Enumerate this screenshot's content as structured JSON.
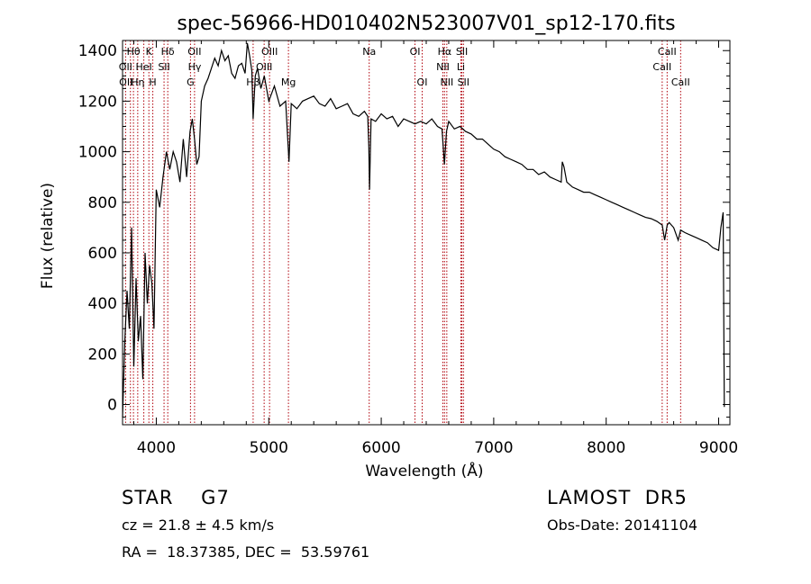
{
  "chart_data": {
    "type": "line",
    "title": "spec-56966-HD010402N523007V01_sp12-170.fits",
    "xlabel": "Wavelength (Å)",
    "ylabel": "Flux (relative)",
    "xlim": [
      3700,
      9100
    ],
    "ylim": [
      -80,
      1440
    ],
    "xticks": [
      4000,
      5000,
      6000,
      7000,
      8000,
      9000
    ],
    "yticks": [
      0,
      200,
      400,
      600,
      800,
      1000,
      1200,
      1400
    ],
    "grid": false,
    "series": [
      {
        "x": [
          3700,
          3720,
          3740,
          3760,
          3780,
          3800,
          3820,
          3840,
          3860,
          3880,
          3900,
          3920,
          3940,
          3960,
          3980,
          4000,
          4030,
          4060,
          4090,
          4120,
          4150,
          4180,
          4210,
          4240,
          4270,
          4300,
          4320,
          4340,
          4360,
          4380,
          4400,
          4430,
          4460,
          4490,
          4520,
          4550,
          4580,
          4610,
          4640,
          4670,
          4700,
          4730,
          4760,
          4790,
          4810,
          4830,
          4850,
          4861,
          4880,
          4900,
          4930,
          4960,
          5000,
          5050,
          5100,
          5150,
          5180,
          5200,
          5250,
          5300,
          5350,
          5400,
          5450,
          5500,
          5550,
          5600,
          5650,
          5700,
          5750,
          5800,
          5850,
          5880,
          5890,
          5896,
          5910,
          5950,
          6000,
          6050,
          6100,
          6150,
          6200,
          6250,
          6300,
          6350,
          6400,
          6450,
          6500,
          6540,
          6562,
          6580,
          6600,
          6650,
          6700,
          6750,
          6800,
          6850,
          6900,
          6950,
          7000,
          7050,
          7100,
          7150,
          7200,
          7250,
          7300,
          7350,
          7400,
          7450,
          7500,
          7550,
          7600,
          7610,
          7625,
          7650,
          7700,
          7750,
          7800,
          7850,
          7900,
          7950,
          8000,
          8050,
          8100,
          8150,
          8200,
          8250,
          8300,
          8350,
          8400,
          8450,
          8498,
          8520,
          8542,
          8560,
          8600,
          8640,
          8662,
          8700,
          8750,
          8800,
          8850,
          8900,
          8950,
          9000,
          9020,
          9040,
          9050
        ],
        "y": [
          -50,
          250,
          450,
          300,
          700,
          150,
          500,
          250,
          350,
          100,
          600,
          400,
          550,
          480,
          300,
          850,
          780,
          900,
          1000,
          930,
          1000,
          960,
          880,
          1050,
          900,
          1080,
          1130,
          1050,
          950,
          980,
          1200,
          1260,
          1290,
          1330,
          1370,
          1340,
          1400,
          1360,
          1380,
          1310,
          1290,
          1340,
          1350,
          1310,
          1430,
          1380,
          1320,
          1130,
          1300,
          1330,
          1250,
          1300,
          1200,
          1260,
          1180,
          1200,
          960,
          1190,
          1170,
          1200,
          1210,
          1220,
          1190,
          1180,
          1210,
          1170,
          1180,
          1190,
          1150,
          1140,
          1160,
          1140,
          1020,
          850,
          1130,
          1120,
          1150,
          1130,
          1140,
          1100,
          1130,
          1120,
          1110,
          1120,
          1110,
          1130,
          1100,
          1090,
          950,
          1080,
          1120,
          1090,
          1100,
          1080,
          1070,
          1050,
          1050,
          1030,
          1010,
          1000,
          980,
          970,
          960,
          950,
          930,
          930,
          910,
          920,
          900,
          890,
          880,
          960,
          940,
          880,
          860,
          850,
          840,
          840,
          830,
          820,
          810,
          800,
          790,
          780,
          770,
          760,
          750,
          740,
          735,
          725,
          710,
          650,
          710,
          720,
          700,
          650,
          690,
          680,
          670,
          660,
          650,
          640,
          620,
          610,
          700,
          760,
          -10
        ]
      }
    ],
    "line_labels": {
      "row1": [
        {
          "text": "Hθ",
          "x": 3797
        },
        {
          "text": "K",
          "x": 3934
        },
        {
          "text": "Hδ",
          "x": 4102
        },
        {
          "text": "OII",
          "x": 4340
        },
        {
          "text": "OIII",
          "x": 5007
        },
        {
          "text": "Na",
          "x": 5893
        },
        {
          "text": "OI",
          "x": 6300
        },
        {
          "text": "Hα",
          "x": 6563
        },
        {
          "text": "SII",
          "x": 6717
        },
        {
          "text": "CaII",
          "x": 8542
        }
      ],
      "row2": [
        {
          "text": "OII",
          "x": 3727
        },
        {
          "text": "HeI",
          "x": 3889
        },
        {
          "text": "SII",
          "x": 4069
        },
        {
          "text": "Hγ",
          "x": 4341
        },
        {
          "text": "OIII",
          "x": 4959
        },
        {
          "text": "NII",
          "x": 6548
        },
        {
          "text": "Li",
          "x": 6708
        },
        {
          "text": "CaII",
          "x": 8498
        }
      ],
      "row3": [
        {
          "text": "OII",
          "x": 3730
        },
        {
          "text": "Hη",
          "x": 3835
        },
        {
          "text": "H",
          "x": 3969
        },
        {
          "text": "G",
          "x": 4304
        },
        {
          "text": "Hβ",
          "x": 4861
        },
        {
          "text": "Mg",
          "x": 5175
        },
        {
          "text": "OI",
          "x": 6364
        },
        {
          "text": "NII",
          "x": 6583
        },
        {
          "text": "SII",
          "x": 6731
        },
        {
          "text": "CaII",
          "x": 8662
        }
      ]
    },
    "line_positions": [
      3727,
      3770,
      3797,
      3835,
      3889,
      3934,
      3969,
      4069,
      4102,
      4304,
      4340,
      4861,
      4959,
      5007,
      5175,
      5893,
      6300,
      6364,
      6548,
      6563,
      6583,
      6708,
      6717,
      6731,
      8498,
      8542,
      8662
    ],
    "line_color": "#b0000a",
    "spectrum_color": "#000000"
  },
  "info": {
    "object_type": "STAR    G7",
    "survey": "LAMOST  DR5",
    "cz": "cz = 21.8 ± 4.5 km/s",
    "obs_date": "Obs-Date: 20141104",
    "radec": "RA =  18.37385, DEC =  53.59761"
  }
}
